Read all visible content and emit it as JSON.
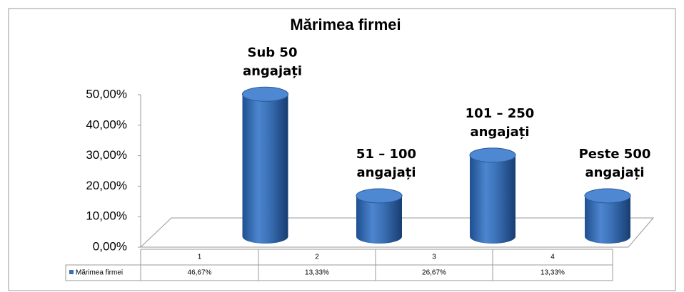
{
  "chart_data": {
    "type": "bar3d",
    "title": "Mărimea firmei",
    "categories": [
      "1",
      "2",
      "3",
      "4"
    ],
    "series": [
      {
        "name": "Mărimea firmei",
        "color": "#3a6fb5",
        "values": [
          46.67,
          13.33,
          26.67,
          13.33
        ],
        "value_labels": [
          "46,67%",
          "13,33%",
          "26,67%",
          "13,33%"
        ]
      }
    ],
    "annotations": [
      [
        "Sub 50",
        "angajați"
      ],
      [
        "51 – 100",
        "angajați"
      ],
      [
        "101 – 250",
        "angajați"
      ],
      [
        "Peste 500",
        "angajați"
      ]
    ],
    "ylim": [
      0,
      50
    ],
    "yticks": [
      {
        "value": 0,
        "label": "0,00%"
      },
      {
        "value": 10,
        "label": "10,00%"
      },
      {
        "value": 20,
        "label": "20,00%"
      },
      {
        "value": 30,
        "label": "30,00%"
      },
      {
        "value": 40,
        "label": "40,00%"
      },
      {
        "value": 50,
        "label": "50,00%"
      }
    ],
    "grid": false,
    "legend": "table"
  }
}
